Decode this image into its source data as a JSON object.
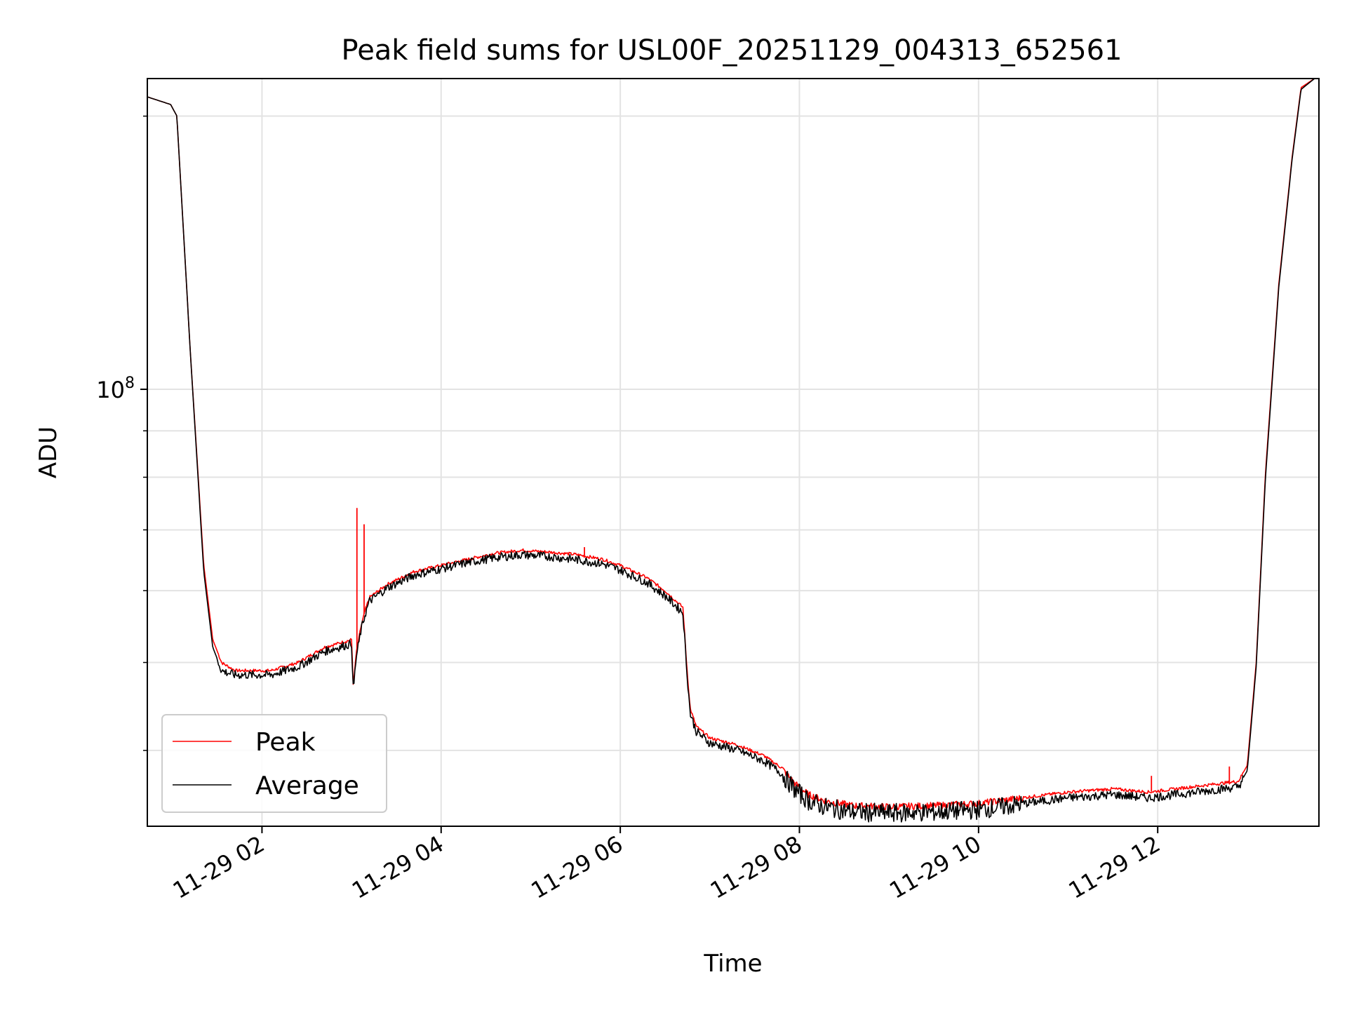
{
  "chart_data": {
    "type": "line",
    "title": "Peak field sums for USL00F_20251129_004313_652561",
    "xlabel": "Time",
    "ylabel": "ADU",
    "yscale": "log",
    "xlim": [
      0.72,
      13.8
    ],
    "ylim": [
      33000000,
      220000000
    ],
    "grid": true,
    "legend_position": "lower-left",
    "x_tick_values": [
      2,
      4,
      6,
      8,
      10,
      12
    ],
    "x_tick_labels": [
      "11-29 02",
      "11-29 04",
      "11-29 06",
      "11-29 08",
      "11-29 10",
      "11-29 12"
    ],
    "y_tick_values": [
      100000000
    ],
    "y_tick_label_base": "10",
    "y_tick_label_exp": "8",
    "y_minor_tick_values": [
      40000000,
      50000000,
      60000000,
      70000000,
      80000000,
      90000000,
      200000000
    ],
    "series": [
      {
        "name": "Peak",
        "color": "#ff0000",
        "x": [
          0.72,
          0.98,
          1.05,
          1.2,
          1.35,
          1.45,
          1.55,
          1.7,
          1.9,
          2.1,
          2.4,
          2.7,
          3.0,
          3.02,
          3.05,
          3.08,
          3.1,
          3.15,
          3.2,
          3.4,
          3.7,
          4.0,
          4.3,
          4.6,
          4.9,
          5.2,
          5.5,
          5.8,
          6.0,
          6.3,
          6.5,
          6.7,
          6.74,
          6.78,
          6.85,
          7.0,
          7.3,
          7.6,
          7.8,
          7.95,
          8.1,
          8.3,
          8.6,
          9.0,
          9.5,
          10.0,
          10.5,
          11.0,
          11.5,
          11.9,
          12.1,
          12.4,
          12.7,
          12.9,
          13.0,
          13.1,
          13.2,
          13.35,
          13.5,
          13.6,
          13.75,
          13.8
        ],
        "y": [
          210000000,
          206000000,
          200000000,
          110000000,
          64000000,
          53000000,
          50000000,
          49000000,
          49000000,
          49000000,
          50000000,
          52000000,
          53000000,
          47000000,
          51000000,
          53000000,
          54500000,
          57000000,
          59000000,
          61000000,
          63000000,
          64000000,
          65000000,
          66000000,
          66500000,
          66200000,
          65800000,
          65000000,
          64000000,
          62000000,
          60000000,
          57500000,
          50000000,
          44500000,
          42500000,
          41300000,
          40600000,
          39500000,
          38300000,
          36800000,
          35800000,
          35200000,
          34800000,
          34700000,
          34800000,
          35000000,
          35500000,
          36000000,
          36300000,
          36000000,
          36200000,
          36500000,
          36800000,
          37000000,
          38500000,
          50000000,
          80000000,
          130000000,
          180000000,
          215000000,
          220000000,
          220000000
        ],
        "spikes": [
          {
            "x": 3.06,
            "y": 74000000
          },
          {
            "x": 3.14,
            "y": 71000000
          },
          {
            "x": 5.6,
            "y": 67000000
          },
          {
            "x": 11.93,
            "y": 37500000
          },
          {
            "x": 12.8,
            "y": 38400000
          }
        ]
      },
      {
        "name": "Average",
        "color": "#000000",
        "x": [
          0.72,
          0.98,
          1.05,
          1.2,
          1.35,
          1.45,
          1.55,
          1.7,
          1.9,
          2.1,
          2.4,
          2.7,
          3.0,
          3.02,
          3.05,
          3.08,
          3.1,
          3.15,
          3.2,
          3.4,
          3.7,
          4.0,
          4.3,
          4.6,
          4.9,
          5.2,
          5.5,
          5.8,
          6.0,
          6.3,
          6.5,
          6.7,
          6.74,
          6.78,
          6.85,
          7.0,
          7.3,
          7.6,
          7.8,
          7.95,
          8.1,
          8.3,
          8.6,
          9.0,
          9.5,
          10.0,
          10.5,
          11.0,
          11.5,
          11.9,
          12.1,
          12.4,
          12.7,
          12.9,
          13.0,
          13.1,
          13.2,
          13.35,
          13.5,
          13.6,
          13.75,
          13.8
        ],
        "y": [
          210000000,
          206000000,
          200000000,
          110000000,
          63000000,
          52000000,
          49000000,
          48500000,
          48500000,
          48500000,
          49500000,
          51500000,
          52500000,
          46500000,
          50500000,
          52500000,
          54000000,
          56500000,
          58500000,
          60500000,
          62500000,
          63500000,
          64500000,
          65300000,
          65800000,
          65500000,
          65000000,
          64300000,
          63300000,
          61300000,
          59300000,
          56800000,
          49500000,
          44000000,
          42000000,
          40800000,
          40100000,
          39000000,
          37800000,
          36300000,
          35300000,
          34700000,
          34300000,
          34200000,
          34300000,
          34500000,
          35000000,
          35500000,
          35800000,
          35500000,
          35700000,
          36000000,
          36300000,
          36500000,
          38000000,
          49500000,
          79000000,
          129000000,
          179000000,
          214000000,
          220000000,
          220000000
        ]
      }
    ]
  }
}
